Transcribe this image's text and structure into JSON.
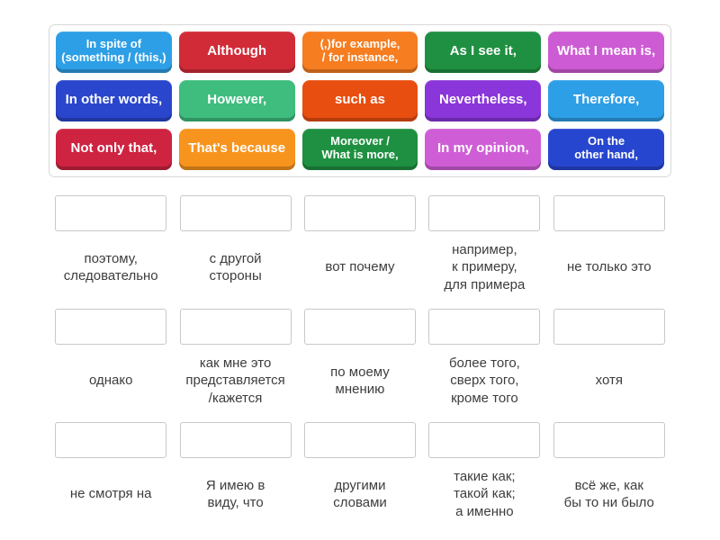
{
  "source_panel": {
    "tiles": [
      {
        "label": "In spite of\n(something / (this,)",
        "color": "#2d9fe6"
      },
      {
        "label": "Although",
        "color": "#d22b38"
      },
      {
        "label": "(,)for example,\n/ for instance,",
        "color": "#f67d20"
      },
      {
        "label": "As I see it,",
        "color": "#1f9041"
      },
      {
        "label": "What I mean is,",
        "color": "#cd5bd3"
      },
      {
        "label": "In other words,",
        "color": "#2a46cc"
      },
      {
        "label": "However,",
        "color": "#3ebd7e"
      },
      {
        "label": "such as",
        "color": "#e84e10"
      },
      {
        "label": "Nevertheless,",
        "color": "#8b36da"
      },
      {
        "label": "Therefore,",
        "color": "#2d9fe6"
      },
      {
        "label": "Not only that,",
        "color": "#ce2341"
      },
      {
        "label": "That's because",
        "color": "#f7941e"
      },
      {
        "label": "Moreover /\nWhat is more,",
        "color": "#1f9041"
      },
      {
        "label": "In my opinion,",
        "color": "#cf5ed6"
      },
      {
        "label": "On the\nother hand,",
        "color": "#2746cf"
      }
    ]
  },
  "answers": {
    "items": [
      {
        "label": "поэтому,\nследовательно"
      },
      {
        "label": "с другой\nстороны"
      },
      {
        "label": "вот почему"
      },
      {
        "label": "например,\nк примеру,\nдля примера"
      },
      {
        "label": "не только это"
      },
      {
        "label": "однако"
      },
      {
        "label": "как мне это\nпредставляется\n/кажется"
      },
      {
        "label": "по моему\nмнению"
      },
      {
        "label": "более того,\nсверх того,\nкроме того"
      },
      {
        "label": "хотя"
      },
      {
        "label": "не смотря на"
      },
      {
        "label": "Я имею в\nвиду, что"
      },
      {
        "label": "другими\nсловами"
      },
      {
        "label": "такие как;\nтакой как;\nа именно"
      },
      {
        "label": "всё же, как\nбы то ни было"
      }
    ]
  }
}
